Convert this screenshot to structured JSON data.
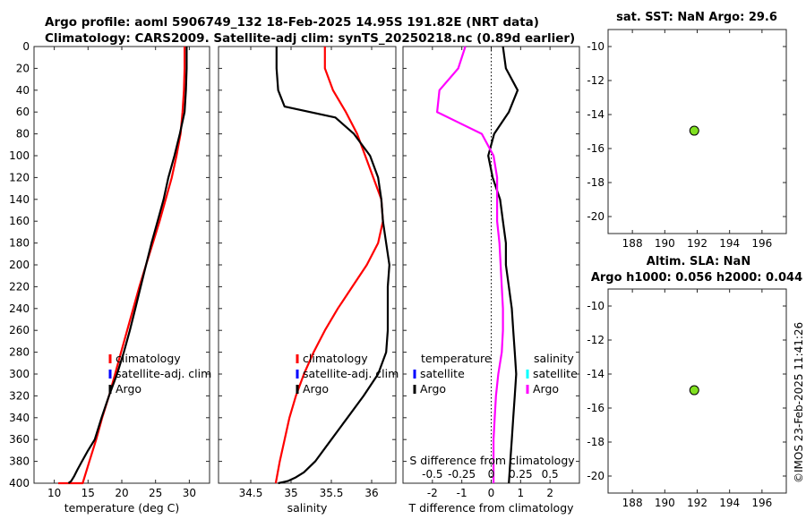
{
  "title": {
    "line1": "Argo profile: aoml 5906749_132 18-Feb-2025 14.95S 191.82E (NRT data)",
    "line2": "Climatology: CARS2009. Satellite-adj clim: synTS_20250218.nc (0.89d earlier)"
  },
  "stamp": "©IMOS 23-Feb-2025 11:41:26",
  "colors": {
    "climatology": "#ff0000",
    "satellite": "#0000ff",
    "argo": "#000000",
    "salinity_diff": "#ff00ff",
    "satellite_s": "#00ffff",
    "marker_fill": "#80e020"
  },
  "chart_data": [
    {
      "type": "line",
      "id": "temperature",
      "xlabel": "temperature (deg C)",
      "ylabel": "",
      "xlim": [
        7,
        33
      ],
      "ylim": [
        400,
        0
      ],
      "xticks": [
        10,
        15,
        20,
        25,
        30
      ],
      "yticks": [
        0,
        20,
        40,
        60,
        80,
        100,
        120,
        140,
        160,
        180,
        200,
        220,
        240,
        260,
        280,
        300,
        320,
        340,
        360,
        380,
        400
      ],
      "legend": [
        "climatology",
        "satellite-adj. clim",
        "Argo"
      ],
      "series": [
        {
          "name": "climatology",
          "x": [
            29.3,
            29.3,
            29.2,
            29.0,
            28.7,
            28.1,
            27.4,
            26.5,
            25.6,
            24.6,
            23.6,
            22.6,
            21.7,
            20.8,
            19.9,
            19.0,
            18.1,
            17.1,
            16.2,
            15.2,
            14.2,
            13.2,
            12.3,
            11.4,
            10.6
          ],
          "y": [
            0,
            20,
            40,
            60,
            80,
            100,
            120,
            140,
            160,
            180,
            200,
            220,
            240,
            260,
            280,
            300,
            320,
            340,
            360,
            380,
            400,
            400,
            400,
            400,
            400
          ]
        },
        {
          "name": "Argo",
          "x": [
            29.6,
            29.6,
            29.5,
            29.3,
            28.6,
            27.8,
            26.9,
            26.2,
            25.3,
            24.4,
            23.6,
            22.8,
            22.0,
            21.2,
            20.3,
            19.3,
            18.1,
            17.0,
            16.0,
            15.0,
            14.1,
            13.4,
            12.9,
            12.5,
            12.1
          ],
          "y": [
            0,
            20,
            40,
            60,
            80,
            100,
            120,
            140,
            160,
            180,
            200,
            220,
            240,
            260,
            280,
            300,
            320,
            340,
            360,
            370,
            380,
            388,
            394,
            398,
            400
          ]
        }
      ]
    },
    {
      "type": "line",
      "id": "salinity",
      "xlabel": "salinity",
      "ylabel": "",
      "xlim": [
        34.1,
        36.3
      ],
      "ylim": [
        400,
        0
      ],
      "xticks": [
        34.5,
        35,
        35.5,
        36
      ],
      "legend": [
        "climatology",
        "satellite-adj. clim",
        "Argo"
      ],
      "series": [
        {
          "name": "climatology",
          "x": [
            35.42,
            35.42,
            35.52,
            35.68,
            35.82,
            35.92,
            36.02,
            36.12,
            36.14,
            36.08,
            35.94,
            35.76,
            35.58,
            35.42,
            35.28,
            35.16,
            35.06,
            34.98,
            34.92,
            34.86,
            34.81
          ],
          "y": [
            0,
            20,
            40,
            60,
            80,
            100,
            120,
            140,
            160,
            180,
            200,
            220,
            240,
            260,
            280,
            300,
            320,
            340,
            360,
            380,
            400
          ]
        },
        {
          "name": "Argo",
          "x": [
            34.82,
            34.82,
            34.84,
            34.92,
            35.55,
            35.78,
            35.98,
            36.08,
            36.12,
            36.14,
            36.18,
            36.22,
            36.2,
            36.2,
            36.2,
            36.18,
            36.08,
            35.9,
            35.7,
            35.5,
            35.3,
            35.16,
            35.05,
            34.96,
            34.9,
            34.84
          ],
          "y": [
            0,
            20,
            40,
            55,
            65,
            80,
            100,
            120,
            140,
            160,
            180,
            200,
            220,
            240,
            260,
            280,
            300,
            320,
            340,
            360,
            380,
            390,
            395,
            398,
            399,
            400
          ]
        }
      ]
    },
    {
      "type": "line",
      "id": "difference",
      "xlabel": "T difference from climatology",
      "top_label": "S difference from climatology",
      "xlim": [
        -3,
        3
      ],
      "ylim": [
        400,
        0
      ],
      "xticks": [
        -2,
        -1,
        0,
        1,
        2
      ],
      "top_ticks": [
        "-0.5",
        "-0.25",
        "0",
        "0.25",
        "0.5"
      ],
      "legend_t": [
        "temperature",
        "satellite",
        "Argo"
      ],
      "legend_s": [
        "salinity",
        "satellite",
        "Argo"
      ],
      "series": [
        {
          "name": "T Argo",
          "x": [
            0.4,
            0.5,
            0.9,
            0.6,
            0.1,
            -0.1,
            0.05,
            0.3,
            0.4,
            0.5,
            0.5,
            0.6,
            0.7,
            0.75,
            0.8,
            0.85,
            0.8,
            0.75,
            0.7,
            0.65,
            0.6
          ],
          "y": [
            0,
            20,
            40,
            60,
            80,
            100,
            120,
            140,
            160,
            180,
            200,
            220,
            240,
            260,
            280,
            300,
            320,
            340,
            360,
            380,
            400
          ]
        },
        {
          "name": "S Argo",
          "x": [
            -0.22,
            -0.28,
            -0.44,
            -0.46,
            -0.08,
            0.02,
            0.05,
            0.05,
            0.05,
            0.07,
            0.08,
            0.09,
            0.1,
            0.1,
            0.09,
            0.06,
            0.04,
            0.03,
            0.02,
            0.02,
            0.02
          ],
          "y": [
            0,
            20,
            40,
            60,
            80,
            100,
            120,
            140,
            160,
            180,
            200,
            220,
            240,
            260,
            280,
            300,
            320,
            340,
            360,
            380,
            400
          ]
        }
      ]
    },
    {
      "type": "scatter",
      "id": "sst",
      "title": "sat. SST: NaN Argo: 29.6",
      "xlim": [
        186.5,
        197.5
      ],
      "ylim": [
        -21,
        -9
      ],
      "xticks": [
        188,
        190,
        192,
        194,
        196
      ],
      "yticks": [
        -10,
        -12,
        -14,
        -16,
        -18,
        -20
      ],
      "points": [
        {
          "x": 191.82,
          "y": -14.95
        }
      ]
    },
    {
      "type": "scatter",
      "id": "sla",
      "title": "Altim. SLA: NaN",
      "subtitle": "Argo h1000: 0.056 h2000: 0.044",
      "xlim": [
        186.5,
        197.5
      ],
      "ylim": [
        -21,
        -9
      ],
      "xticks": [
        188,
        190,
        192,
        194,
        196
      ],
      "yticks": [
        -10,
        -12,
        -14,
        -16,
        -18,
        -20
      ],
      "points": [
        {
          "x": 191.82,
          "y": -14.95
        }
      ]
    }
  ]
}
